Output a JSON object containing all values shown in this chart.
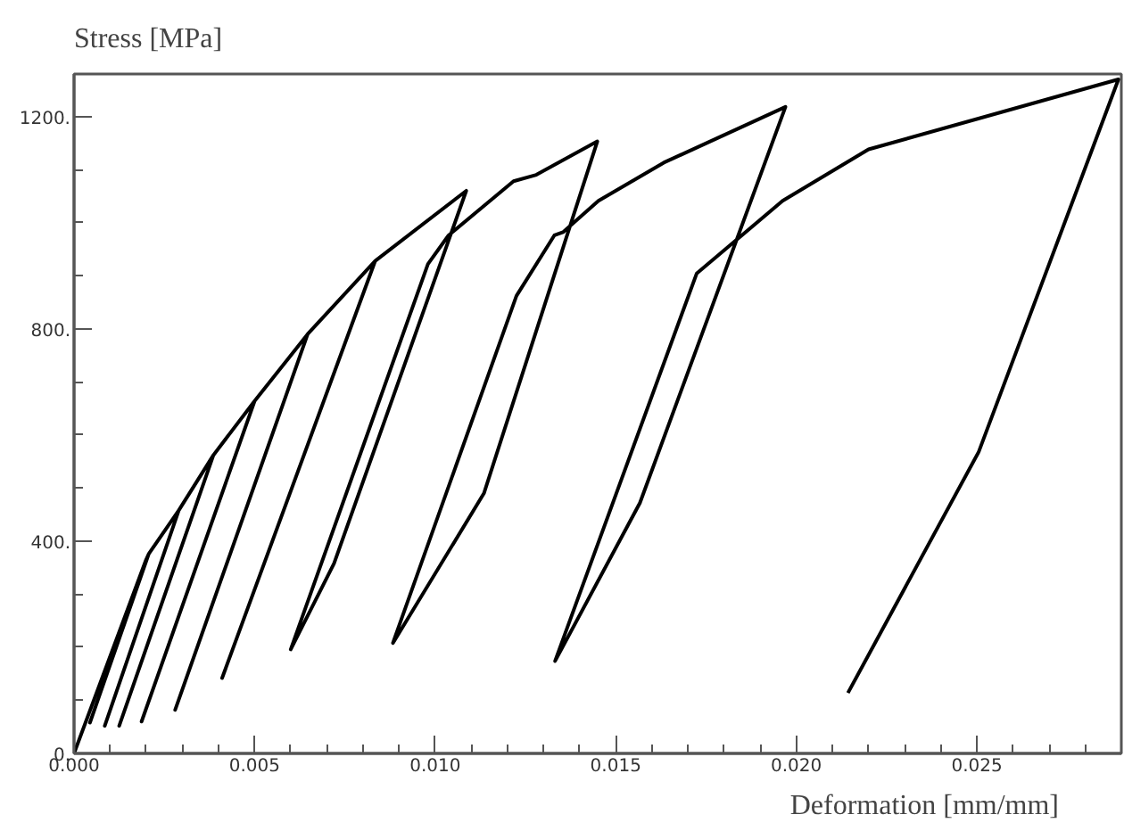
{
  "chart_data": {
    "type": "line",
    "xlabel": "Deformation [mm/mm]",
    "ylabel": "Stress [MPa]",
    "x": [
      0,
      0.00199,
      0.00207,
      0.00044,
      0.00207,
      0.0029,
      0.00085,
      0.0029,
      0.00386,
      0.00125,
      0.00386,
      0.005,
      0.00187,
      0.005,
      0.00647,
      0.0028,
      0.00647,
      0.00834,
      0.0041,
      0.00834,
      0.01086,
      0.0072,
      0.006,
      0.0098,
      0.01037,
      0.01217,
      0.0128,
      0.01449,
      0.01135,
      0.00883,
      0.01225,
      0.0133,
      0.01354,
      0.01452,
      0.01633,
      0.0197,
      0.01567,
      0.01332,
      0.01724,
      0.01962,
      0.022,
      0.02892,
      0.02505,
      0.02143
    ],
    "series": [
      {
        "color": "#000000",
        "values": [
          0,
          364,
          376,
          58,
          376,
          458,
          52,
          458,
          562,
          52,
          562,
          664,
          60,
          664,
          790,
          82,
          790,
          928,
          142,
          928,
          1060,
          358,
          196,
          922,
          976,
          1078,
          1090,
          1153,
          490,
          208,
          862,
          976,
          982,
          1041,
          1113,
          1218,
          472,
          174,
          904,
          1041,
          1138,
          1270,
          568,
          114
        ]
      }
    ],
    "xlim": [
      0,
      0.029
    ],
    "ylim": [
      0,
      1280
    ],
    "xticks": [
      {
        "value": 0,
        "label": "0.000"
      },
      {
        "value": 0.005,
        "label": "0.005"
      },
      {
        "value": 0.01,
        "label": "0.010"
      },
      {
        "value": 0.015,
        "label": "0.015"
      },
      {
        "value": 0.02,
        "label": "0.020"
      },
      {
        "value": 0.025,
        "label": "0.025"
      }
    ],
    "yticks": [
      {
        "value": 0,
        "label": "0."
      },
      {
        "value": 400,
        "label": "400."
      },
      {
        "value": 800,
        "label": "800."
      },
      {
        "value": 1200,
        "label": "1200."
      }
    ],
    "grid": false
  }
}
